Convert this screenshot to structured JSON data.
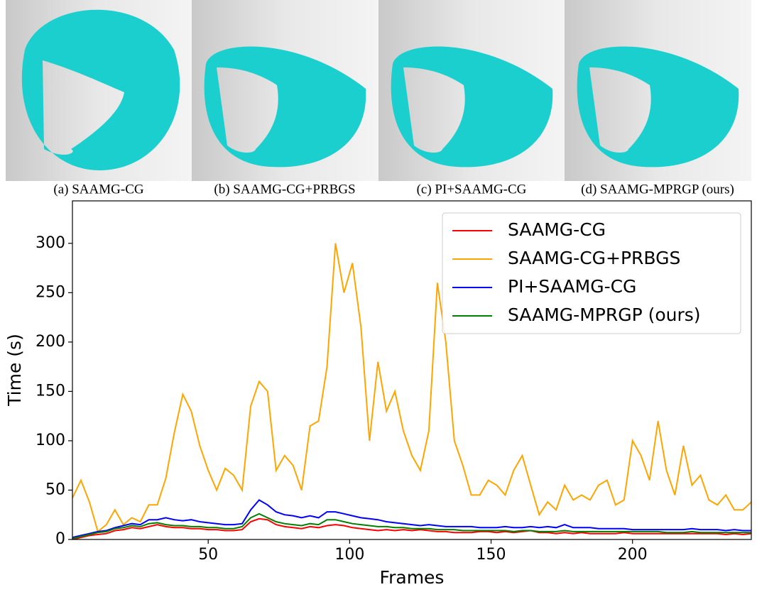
{
  "panels": [
    {
      "caption": "(a) SAAMG-CG"
    },
    {
      "caption": "(b) SAAMG-CG+PRBGS"
    },
    {
      "caption": "(c) PI+SAAMG-CG"
    },
    {
      "caption": "(d) SAAMG-MPRGP (ours)"
    }
  ],
  "chart_data": {
    "type": "line",
    "xlabel": "Frames",
    "ylabel": "Time (s)",
    "x": [
      2,
      5,
      8,
      11,
      14,
      17,
      20,
      23,
      26,
      29,
      32,
      35,
      38,
      41,
      44,
      47,
      50,
      53,
      56,
      59,
      62,
      65,
      68,
      71,
      74,
      77,
      80,
      83,
      86,
      89,
      92,
      95,
      98,
      101,
      104,
      107,
      110,
      113,
      116,
      119,
      122,
      125,
      128,
      131,
      134,
      137,
      140,
      143,
      146,
      149,
      152,
      155,
      158,
      161,
      164,
      167,
      170,
      173,
      176,
      179,
      182,
      185,
      188,
      191,
      194,
      197,
      200,
      203,
      206,
      209,
      212,
      215,
      218,
      221,
      224,
      227,
      230,
      233,
      236,
      239,
      242
    ],
    "series": [
      {
        "name": "SAAMG-CG",
        "color": "#ff0000",
        "values": [
          0,
          2,
          4,
          5,
          6,
          9,
          10,
          12,
          11,
          13,
          15,
          13,
          12,
          12,
          11,
          11,
          10,
          10,
          9,
          9,
          10,
          18,
          21,
          20,
          15,
          13,
          12,
          11,
          13,
          12,
          14,
          15,
          14,
          12,
          11,
          10,
          9,
          10,
          9,
          10,
          9,
          10,
          9,
          8,
          8,
          7,
          7,
          7,
          8,
          8,
          7,
          8,
          7,
          8,
          9,
          7,
          7,
          6,
          7,
          6,
          7,
          6,
          6,
          6,
          6,
          7,
          6,
          6,
          6,
          6,
          6,
          6,
          6,
          6,
          6,
          6,
          6,
          5,
          6,
          5,
          6
        ]
      },
      {
        "name": "SAAMG-CG+PRBGS",
        "color": "#ffa500",
        "values": [
          42,
          60,
          38,
          8,
          15,
          30,
          15,
          22,
          18,
          35,
          35,
          62,
          108,
          147,
          130,
          95,
          70,
          50,
          72,
          65,
          50,
          135,
          160,
          150,
          70,
          85,
          75,
          50,
          115,
          120,
          175,
          300,
          250,
          280,
          215,
          100,
          180,
          130,
          150,
          110,
          85,
          70,
          110,
          260,
          200,
          100,
          75,
          45,
          45,
          60,
          55,
          45,
          70,
          85,
          55,
          25,
          38,
          30,
          55,
          40,
          45,
          40,
          55,
          60,
          35,
          40,
          100,
          85,
          60,
          120,
          70,
          45,
          95,
          55,
          65,
          40,
          35,
          45,
          30,
          30,
          38
        ]
      },
      {
        "name": "PI+SAAMG-CG",
        "color": "#0000ff",
        "values": [
          2,
          4,
          6,
          8,
          9,
          12,
          14,
          16,
          15,
          20,
          20,
          22,
          20,
          19,
          20,
          18,
          17,
          16,
          15,
          15,
          16,
          30,
          40,
          35,
          28,
          25,
          24,
          22,
          24,
          22,
          28,
          28,
          26,
          24,
          22,
          21,
          20,
          18,
          17,
          16,
          15,
          14,
          15,
          14,
          13,
          13,
          13,
          13,
          12,
          12,
          12,
          13,
          12,
          12,
          13,
          12,
          13,
          12,
          15,
          12,
          12,
          12,
          11,
          11,
          11,
          11,
          10,
          10,
          10,
          10,
          10,
          10,
          10,
          11,
          10,
          10,
          10,
          9,
          10,
          9,
          9
        ]
      },
      {
        "name": "SAAMG-MPRGP (ours)",
        "color": "#008000",
        "values": [
          1,
          3,
          5,
          7,
          8,
          11,
          12,
          14,
          13,
          16,
          17,
          15,
          14,
          14,
          13,
          13,
          12,
          12,
          11,
          11,
          13,
          22,
          26,
          22,
          18,
          16,
          15,
          14,
          16,
          15,
          20,
          20,
          18,
          16,
          15,
          14,
          13,
          13,
          12,
          12,
          11,
          11,
          11,
          10,
          10,
          10,
          9,
          9,
          9,
          9,
          9,
          9,
          8,
          9,
          9,
          8,
          8,
          8,
          9,
          8,
          8,
          8,
          8,
          8,
          8,
          8,
          8,
          8,
          8,
          8,
          7,
          7,
          7,
          8,
          7,
          7,
          7,
          7,
          7,
          7,
          7
        ]
      }
    ],
    "xlim": [
      2,
      242
    ],
    "ylim": [
      0,
      343
    ],
    "xticks": [
      50,
      100,
      150,
      200
    ],
    "yticks": [
      0,
      50,
      100,
      150,
      200,
      250,
      300
    ],
    "legend": "upper right"
  }
}
